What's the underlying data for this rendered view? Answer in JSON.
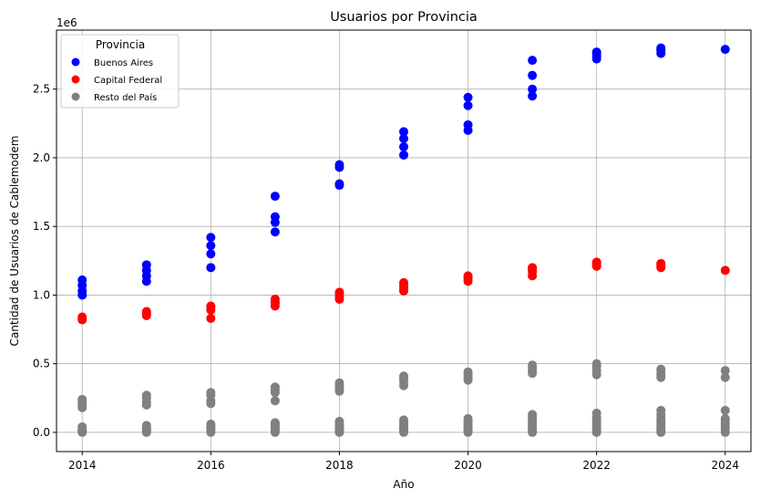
{
  "chart_data": {
    "type": "scatter",
    "title": "Usuarios por Provincia",
    "xlabel": "Año",
    "ylabel": "Cantidad de Usuarios de Cablemodem",
    "y_offset_label": "1e6",
    "xlim": [
      2013.6,
      2024.4
    ],
    "ylim": [
      -0.14,
      2.93
    ],
    "xticks": [
      2014,
      2016,
      2018,
      2020,
      2022,
      2024
    ],
    "yticks": [
      0.0,
      0.5,
      1.0,
      1.5,
      2.0,
      2.5
    ],
    "ytick_labels": [
      "0.0",
      "0.5",
      "1.0",
      "1.5",
      "2.0",
      "2.5"
    ],
    "grid": true,
    "legend": {
      "title": "Provincia",
      "placement": "top-left"
    },
    "series": [
      {
        "name": "Buenos Aires",
        "color": "#0000ff",
        "points": [
          [
            2014,
            1.0
          ],
          [
            2014,
            1.03
          ],
          [
            2014,
            1.07
          ],
          [
            2014,
            1.11
          ],
          [
            2015,
            1.1
          ],
          [
            2015,
            1.14
          ],
          [
            2015,
            1.18
          ],
          [
            2015,
            1.22
          ],
          [
            2016,
            1.2
          ],
          [
            2016,
            1.3
          ],
          [
            2016,
            1.36
          ],
          [
            2016,
            1.42
          ],
          [
            2017,
            1.46
          ],
          [
            2017,
            1.53
          ],
          [
            2017,
            1.57
          ],
          [
            2017,
            1.72
          ],
          [
            2018,
            1.8
          ],
          [
            2018,
            1.81
          ],
          [
            2018,
            1.93
          ],
          [
            2018,
            1.95
          ],
          [
            2019,
            2.02
          ],
          [
            2019,
            2.08
          ],
          [
            2019,
            2.14
          ],
          [
            2019,
            2.19
          ],
          [
            2020,
            2.2
          ],
          [
            2020,
            2.24
          ],
          [
            2020,
            2.38
          ],
          [
            2020,
            2.44
          ],
          [
            2021,
            2.45
          ],
          [
            2021,
            2.5
          ],
          [
            2021,
            2.6
          ],
          [
            2021,
            2.71
          ],
          [
            2022,
            2.72
          ],
          [
            2022,
            2.74
          ],
          [
            2022,
            2.76
          ],
          [
            2022,
            2.77
          ],
          [
            2023,
            2.76
          ],
          [
            2023,
            2.78
          ],
          [
            2023,
            2.79
          ],
          [
            2023,
            2.8
          ],
          [
            2024,
            2.79
          ]
        ]
      },
      {
        "name": "Capital Federal",
        "color": "#ff0000",
        "points": [
          [
            2014,
            0.82
          ],
          [
            2014,
            0.83
          ],
          [
            2014,
            0.84
          ],
          [
            2015,
            0.85
          ],
          [
            2015,
            0.86
          ],
          [
            2015,
            0.87
          ],
          [
            2015,
            0.88
          ],
          [
            2016,
            0.83
          ],
          [
            2016,
            0.89
          ],
          [
            2016,
            0.91
          ],
          [
            2016,
            0.92
          ],
          [
            2017,
            0.92
          ],
          [
            2017,
            0.94
          ],
          [
            2017,
            0.95
          ],
          [
            2017,
            0.97
          ],
          [
            2018,
            0.97
          ],
          [
            2018,
            0.99
          ],
          [
            2018,
            1.01
          ],
          [
            2018,
            1.02
          ],
          [
            2019,
            1.03
          ],
          [
            2019,
            1.05
          ],
          [
            2019,
            1.07
          ],
          [
            2019,
            1.09
          ],
          [
            2020,
            1.1
          ],
          [
            2020,
            1.12
          ],
          [
            2020,
            1.13
          ],
          [
            2020,
            1.14
          ],
          [
            2021,
            1.14
          ],
          [
            2021,
            1.17
          ],
          [
            2021,
            1.19
          ],
          [
            2021,
            1.2
          ],
          [
            2022,
            1.21
          ],
          [
            2022,
            1.22
          ],
          [
            2022,
            1.23
          ],
          [
            2022,
            1.24
          ],
          [
            2023,
            1.2
          ],
          [
            2023,
            1.21
          ],
          [
            2023,
            1.22
          ],
          [
            2023,
            1.23
          ],
          [
            2024,
            1.18
          ]
        ]
      },
      {
        "name": "Resto del País",
        "color": "#808080",
        "points": [
          [
            2014,
            0.0
          ],
          [
            2014,
            0.005
          ],
          [
            2014,
            0.01
          ],
          [
            2014,
            0.015
          ],
          [
            2014,
            0.02
          ],
          [
            2014,
            0.03
          ],
          [
            2014,
            0.04
          ],
          [
            2014,
            0.18
          ],
          [
            2014,
            0.2
          ],
          [
            2014,
            0.22
          ],
          [
            2014,
            0.24
          ],
          [
            2015,
            0.0
          ],
          [
            2015,
            0.005
          ],
          [
            2015,
            0.01
          ],
          [
            2015,
            0.02
          ],
          [
            2015,
            0.03
          ],
          [
            2015,
            0.04
          ],
          [
            2015,
            0.05
          ],
          [
            2015,
            0.2
          ],
          [
            2015,
            0.22
          ],
          [
            2015,
            0.25
          ],
          [
            2015,
            0.27
          ],
          [
            2016,
            0.0
          ],
          [
            2016,
            0.01
          ],
          [
            2016,
            0.02
          ],
          [
            2016,
            0.03
          ],
          [
            2016,
            0.04
          ],
          [
            2016,
            0.05
          ],
          [
            2016,
            0.06
          ],
          [
            2016,
            0.21
          ],
          [
            2016,
            0.23
          ],
          [
            2016,
            0.27
          ],
          [
            2016,
            0.29
          ],
          [
            2017,
            0.0
          ],
          [
            2017,
            0.01
          ],
          [
            2017,
            0.02
          ],
          [
            2017,
            0.03
          ],
          [
            2017,
            0.04
          ],
          [
            2017,
            0.05
          ],
          [
            2017,
            0.06
          ],
          [
            2017,
            0.07
          ],
          [
            2017,
            0.23
          ],
          [
            2017,
            0.29
          ],
          [
            2017,
            0.31
          ],
          [
            2017,
            0.33
          ],
          [
            2018,
            0.0
          ],
          [
            2018,
            0.01
          ],
          [
            2018,
            0.02
          ],
          [
            2018,
            0.03
          ],
          [
            2018,
            0.04
          ],
          [
            2018,
            0.05
          ],
          [
            2018,
            0.06
          ],
          [
            2018,
            0.08
          ],
          [
            2018,
            0.3
          ],
          [
            2018,
            0.32
          ],
          [
            2018,
            0.34
          ],
          [
            2018,
            0.36
          ],
          [
            2019,
            0.0
          ],
          [
            2019,
            0.01
          ],
          [
            2019,
            0.02
          ],
          [
            2019,
            0.03
          ],
          [
            2019,
            0.04
          ],
          [
            2019,
            0.05
          ],
          [
            2019,
            0.07
          ],
          [
            2019,
            0.09
          ],
          [
            2019,
            0.34
          ],
          [
            2019,
            0.37
          ],
          [
            2019,
            0.39
          ],
          [
            2019,
            0.41
          ],
          [
            2020,
            0.0
          ],
          [
            2020,
            0.01
          ],
          [
            2020,
            0.02
          ],
          [
            2020,
            0.03
          ],
          [
            2020,
            0.04
          ],
          [
            2020,
            0.06
          ],
          [
            2020,
            0.08
          ],
          [
            2020,
            0.1
          ],
          [
            2020,
            0.38
          ],
          [
            2020,
            0.4
          ],
          [
            2020,
            0.42
          ],
          [
            2020,
            0.44
          ],
          [
            2021,
            0.0
          ],
          [
            2021,
            0.01
          ],
          [
            2021,
            0.02
          ],
          [
            2021,
            0.03
          ],
          [
            2021,
            0.05
          ],
          [
            2021,
            0.07
          ],
          [
            2021,
            0.09
          ],
          [
            2021,
            0.11
          ],
          [
            2021,
            0.13
          ],
          [
            2021,
            0.43
          ],
          [
            2021,
            0.45
          ],
          [
            2021,
            0.47
          ],
          [
            2021,
            0.49
          ],
          [
            2022,
            0.0
          ],
          [
            2022,
            0.01
          ],
          [
            2022,
            0.02
          ],
          [
            2022,
            0.03
          ],
          [
            2022,
            0.05
          ],
          [
            2022,
            0.07
          ],
          [
            2022,
            0.09
          ],
          [
            2022,
            0.11
          ],
          [
            2022,
            0.14
          ],
          [
            2022,
            0.42
          ],
          [
            2022,
            0.45
          ],
          [
            2022,
            0.48
          ],
          [
            2022,
            0.5
          ],
          [
            2023,
            0.0
          ],
          [
            2023,
            0.01
          ],
          [
            2023,
            0.02
          ],
          [
            2023,
            0.04
          ],
          [
            2023,
            0.06
          ],
          [
            2023,
            0.08
          ],
          [
            2023,
            0.1
          ],
          [
            2023,
            0.13
          ],
          [
            2023,
            0.16
          ],
          [
            2023,
            0.4
          ],
          [
            2023,
            0.42
          ],
          [
            2023,
            0.45
          ],
          [
            2023,
            0.46
          ],
          [
            2024,
            0.0
          ],
          [
            2024,
            0.02
          ],
          [
            2024,
            0.04
          ],
          [
            2024,
            0.06
          ],
          [
            2024,
            0.08
          ],
          [
            2024,
            0.1
          ],
          [
            2024,
            0.16
          ],
          [
            2024,
            0.4
          ],
          [
            2024,
            0.45
          ]
        ]
      }
    ]
  }
}
